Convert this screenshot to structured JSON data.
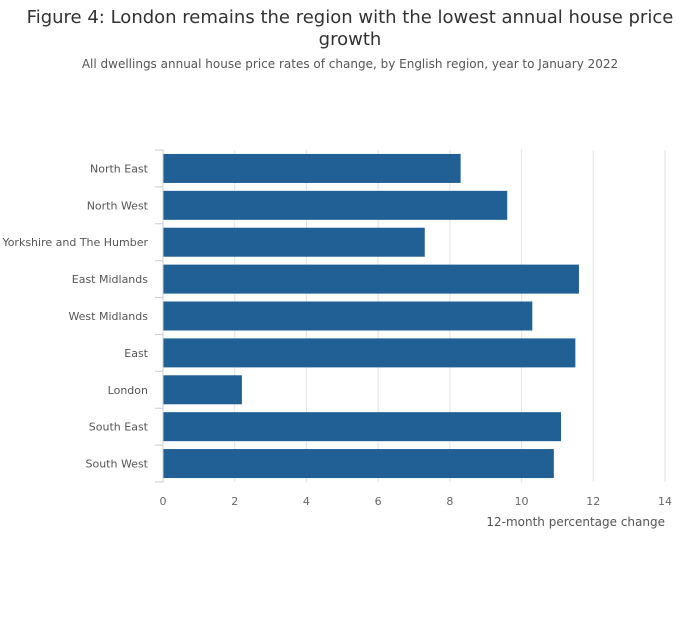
{
  "chart_data": {
    "type": "bar",
    "orientation": "horizontal",
    "title": "Figure 4: London remains the region with the lowest annual house price growth",
    "subtitle": "All dwellings annual house price rates of change, by English region, year to January 2022",
    "categories": [
      "North East",
      "North West",
      "Yorkshire and The Humber",
      "East Midlands",
      "West Midlands",
      "East",
      "London",
      "South East",
      "South West"
    ],
    "values": [
      8.3,
      9.6,
      7.3,
      11.6,
      10.3,
      11.5,
      2.2,
      11.1,
      10.9
    ],
    "xlabel": "12-month percentage change",
    "ylabel": "",
    "xlim": [
      0,
      14
    ],
    "xticks": [
      0,
      2,
      4,
      6,
      8,
      10,
      12,
      14
    ],
    "grid": true,
    "bar_color": "#206095",
    "grid_color": "#e2e2e2"
  }
}
